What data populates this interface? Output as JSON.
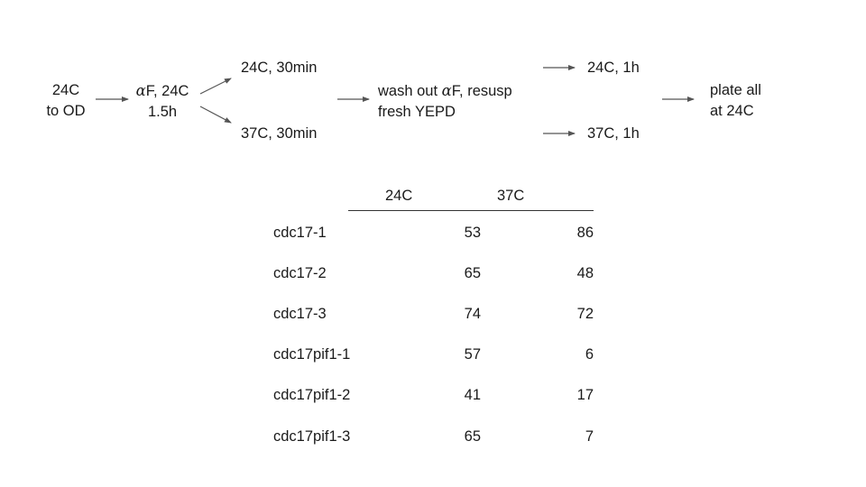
{
  "flow": {
    "start": {
      "line1": "24C",
      "line2": "to OD"
    },
    "arrest": {
      "alpha": "α",
      "line1_rest": "F, 24C",
      "line2": "1.5h"
    },
    "branch_top": "24C, 30min",
    "branch_bottom": "37C, 30min",
    "wash": {
      "line1_pre": "wash out ",
      "alpha": "α",
      "line1_post": "F, resusp",
      "line2": "fresh YEPD"
    },
    "recover_top": "24C, 1h",
    "recover_bottom": "37C, 1h",
    "plate": {
      "line1": "plate all",
      "line2": "at 24C"
    }
  },
  "table": {
    "headers": [
      "24C",
      "37C"
    ],
    "rows": [
      {
        "name": "cdc17-1",
        "v24": "53",
        "v37": "86"
      },
      {
        "name": "cdc17-2",
        "v24": "65",
        "v37": "48"
      },
      {
        "name": "cdc17-3",
        "v24": "74",
        "v37": "72"
      },
      {
        "name": "cdc17pif1-1",
        "v24": "57",
        "v37": "6"
      },
      {
        "name": "cdc17pif1-2",
        "v24": "41",
        "v37": "17"
      },
      {
        "name": "cdc17pif1-3",
        "v24": "65",
        "v37": "7"
      }
    ]
  }
}
